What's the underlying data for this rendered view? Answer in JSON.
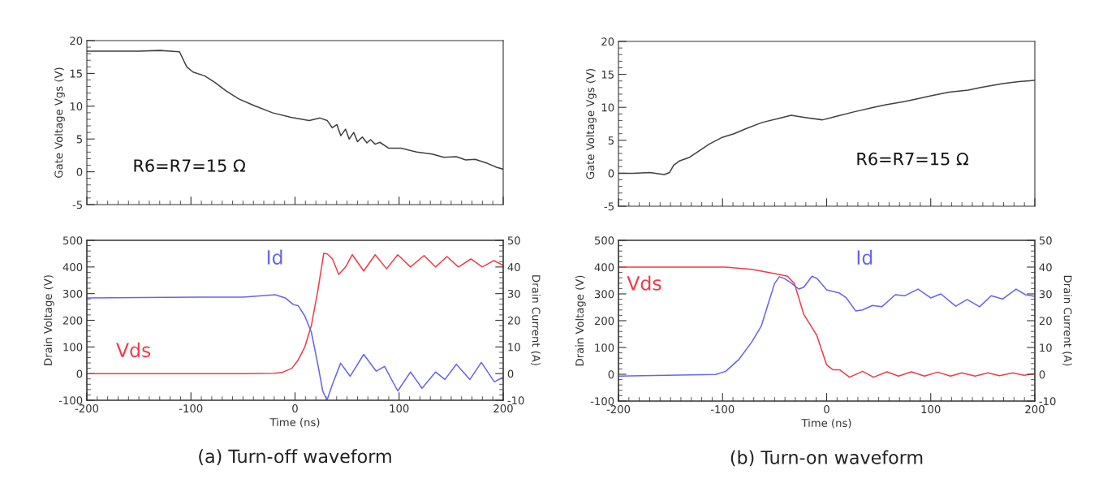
{
  "chart_data": [
    {
      "type": "line",
      "ylabel": "Gate Voltage Vgs (V)",
      "annotations": [
        "R6=R7=15 Ω"
      ],
      "xlim": [
        -200,
        200
      ],
      "xticks": [
        -200,
        -100,
        0,
        100,
        200
      ],
      "ylim": [
        -5,
        20
      ],
      "yticks": [
        -5,
        0,
        5,
        10,
        15,
        20
      ],
      "tick_labels": "y",
      "grid": false,
      "legend": false,
      "series": [
        {
          "color": "#404040",
          "x": [
            -200,
            -150,
            -130,
            -120,
            -111,
            -104,
            -98,
            -86.5,
            -77.7,
            -66,
            -54,
            -39.4,
            -21.7,
            -4,
            13.7,
            24,
            31,
            35.8,
            40.2,
            44,
            48.5,
            52,
            56.4,
            60,
            64.7,
            69,
            72.6,
            77,
            81.5,
            90,
            102,
            117,
            131.6,
            143,
            155,
            164,
            173,
            184.6,
            193.5,
            200
          ],
          "values": [
            18.4,
            18.4,
            18.5,
            18.4,
            18.3,
            16,
            15.2,
            14.6,
            13.7,
            12.3,
            11.1,
            10.1,
            9.0,
            8.3,
            7.8,
            8.2,
            7.8,
            6.7,
            7.2,
            5.5,
            6.5,
            5.0,
            6.0,
            4.6,
            5.3,
            4.4,
            4.9,
            4.2,
            4.5,
            3.6,
            3.6,
            3.0,
            2.7,
            2.2,
            2.3,
            1.8,
            1.9,
            1.3,
            0.7,
            0.4
          ]
        }
      ]
    },
    {
      "type": "line",
      "ylabel": "Gate Voltage Vgs (V)",
      "annotations": [
        "R6=R7=15 Ω"
      ],
      "xlim": [
        -200,
        200
      ],
      "xticks": [
        -200,
        -100,
        0,
        100,
        200
      ],
      "ylim": [
        -5,
        20
      ],
      "yticks": [
        -5,
        0,
        5,
        10,
        15,
        20
      ],
      "tick_labels": "y",
      "grid": false,
      "legend": false,
      "series": [
        {
          "color": "#404040",
          "x": [
            -200,
            -186,
            -170,
            -156,
            -151,
            -147,
            -141,
            -132,
            -122.5,
            -113,
            -101,
            -89,
            -77,
            -62,
            -46.5,
            -34,
            -22,
            -4,
            11,
            26,
            45,
            57,
            75,
            87,
            102,
            117.6,
            136,
            148,
            169,
            184.6,
            200
          ],
          "values": [
            0,
            0,
            0.1,
            -0.2,
            0.1,
            1.2,
            1.9,
            2.4,
            3.4,
            4.4,
            5.4,
            6.0,
            6.8,
            7.7,
            8.3,
            8.8,
            8.5,
            8.1,
            8.7,
            9.3,
            10.0,
            10.4,
            10.9,
            11.3,
            11.8,
            12.3,
            12.6,
            13.0,
            13.6,
            13.9,
            14.1
          ]
        }
      ]
    },
    {
      "type": "line",
      "title": "(a) Turn-off waveform",
      "xlabel": "Time (ns)",
      "ylabel": "Drain Voltage (V)",
      "y2label": "Drain Current (A)",
      "xlim": [
        -200,
        200
      ],
      "xticks": [
        -200,
        -100,
        0,
        100,
        200
      ],
      "ylim": [
        -100,
        500
      ],
      "yticks": [
        -100,
        0,
        100,
        200,
        300,
        400,
        500
      ],
      "y2lim": [
        -10,
        50
      ],
      "y2ticks": [
        -10,
        0,
        10,
        20,
        30,
        40,
        50
      ],
      "grid": false,
      "legend": false,
      "series": [
        {
          "name": "Vds",
          "color": "#f03c46",
          "x": [
            -200,
            -150,
            -100,
            -50,
            -20,
            -12.5,
            -3,
            3,
            9.4,
            15.7,
            22,
            27.6,
            31,
            36,
            42,
            48.6,
            55,
            66,
            77,
            88,
            98.7,
            111,
            124,
            135,
            146,
            157,
            169,
            180,
            191,
            200
          ],
          "values": [
            0,
            0,
            0,
            0,
            1,
            4,
            20,
            51,
            100,
            180,
            314,
            451,
            449,
            430,
            372,
            400,
            446,
            385,
            446,
            393,
            446,
            400,
            443,
            400,
            439,
            400,
            430,
            400,
            424,
            406
          ]
        },
        {
          "name": "Id",
          "color": "#6464f0",
          "axis": "y2",
          "x": [
            -200,
            -150,
            -94,
            -50,
            -19,
            -9.4,
            -1.6,
            3,
            9.4,
            15.7,
            22,
            26.6,
            30.7,
            36,
            43.8,
            53,
            66,
            78,
            86,
            98.7,
            111,
            122,
            135,
            144,
            155,
            168,
            179,
            191.5,
            200
          ],
          "values": [
            28.4,
            28.5,
            28.7,
            28.7,
            29.6,
            28.4,
            25.9,
            25.5,
            21.6,
            15.5,
            3.3,
            -6.5,
            -10,
            -4,
            3.9,
            -1,
            7.2,
            0.9,
            2.7,
            -6.5,
            0.6,
            -5.5,
            0.6,
            -2.2,
            3.5,
            -2.2,
            4.2,
            -3.1,
            -1.3
          ]
        }
      ]
    },
    {
      "type": "line",
      "title": "(b) Turn-on waveform",
      "xlabel": "Time (ns)",
      "ylabel": "Drain Voltage (V)",
      "y2label": "Drain Current (A)",
      "xlim": [
        -200,
        200
      ],
      "xticks": [
        -200,
        -100,
        0,
        100,
        200
      ],
      "ylim": [
        -100,
        500
      ],
      "yticks": [
        -100,
        0,
        100,
        200,
        300,
        400,
        500
      ],
      "y2lim": [
        -10,
        50
      ],
      "y2ticks": [
        -10,
        0,
        10,
        20,
        30,
        40,
        50
      ],
      "grid": false,
      "legend": false,
      "series": [
        {
          "name": "Vds",
          "color": "#f03c46",
          "x": [
            -200,
            -150,
            -97,
            -72,
            -53,
            -37.6,
            -31,
            -22,
            -9.4,
            0,
            6,
            12.5,
            22,
            34.5,
            45,
            58,
            69,
            81.5,
            94,
            106.6,
            119,
            130,
            142.6,
            155,
            166,
            178.7,
            189.6,
            200
          ],
          "values": [
            400,
            400,
            400,
            392,
            378,
            366,
            339,
            224,
            145,
            35,
            17,
            17,
            -11,
            11,
            -11,
            9,
            -7,
            9,
            -7,
            8,
            -7,
            5,
            -7,
            5,
            -5,
            5,
            -4,
            2
          ]
        },
        {
          "name": "Id",
          "color": "#6464f0",
          "axis": "y2",
          "x": [
            -200,
            -153.6,
            -106.6,
            -97,
            -84.6,
            -72,
            -62.7,
            -56.4,
            -50,
            -45.5,
            -40.8,
            -34.5,
            -26.6,
            -22,
            -14,
            -9.4,
            0,
            12.5,
            19,
            28,
            34.5,
            44,
            53,
            66,
            75,
            87.8,
            100,
            109.7,
            124,
            135,
            147,
            158,
            169,
            182,
            191,
            200
          ],
          "values": [
            -0.7,
            -0.4,
            -0.1,
            1.1,
            5.4,
            12.0,
            18.1,
            26.0,
            33.9,
            36.4,
            35.8,
            34.2,
            31.8,
            32.5,
            36.6,
            35.8,
            31.5,
            30.3,
            28.5,
            23.6,
            24.0,
            25.7,
            25.2,
            29.7,
            29.3,
            31.8,
            28.5,
            30.0,
            25.4,
            27.9,
            25.2,
            29.3,
            28.1,
            31.8,
            29.7,
            29.1
          ]
        }
      ]
    }
  ]
}
